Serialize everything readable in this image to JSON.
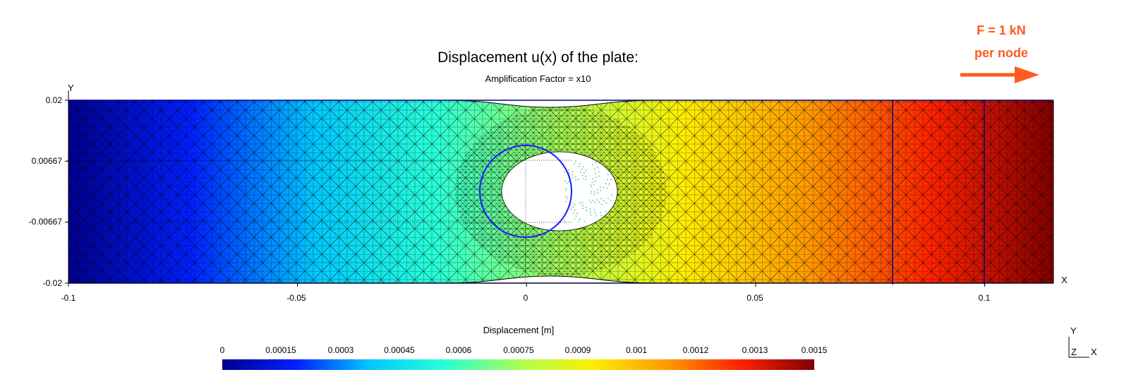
{
  "title": "Displacement u(x) of the plate:",
  "subtitle": "Amplification Factor = x10",
  "load": {
    "line1": "F = 1 kN",
    "line2": "per node",
    "color": "#ff5a1f"
  },
  "axes": {
    "x_name": "X",
    "y_name": "Y",
    "x_ticks": [
      "-0.1",
      "-0.05",
      "0",
      "0.05",
      "0.1"
    ],
    "y_ticks": [
      "0.02",
      "0.00667",
      "-0.00667",
      "-0.02"
    ],
    "xlim": [
      -0.1,
      0.115
    ],
    "ylim": [
      -0.02,
      0.02
    ]
  },
  "colorbar": {
    "title": "Displacement [m]",
    "ticks": [
      "0",
      "0.00015",
      "0.0003",
      "0.00045",
      "0.0006",
      "0.00075",
      "0.0009",
      "0.001",
      "0.0012",
      "0.0013",
      "0.0015"
    ],
    "range": [
      0,
      0.0015
    ],
    "colormap": [
      "#00008f",
      "#0020ff",
      "#00c8ff",
      "#2affd5",
      "#a9ff56",
      "#ffee00",
      "#ff9a00",
      "#ff2200",
      "#800000"
    ]
  },
  "triad": {
    "y": "Y",
    "z": "Z",
    "x": "X"
  },
  "colors": {
    "outline": "#000080",
    "undeformed_hole": "#1a1aff",
    "mesh": "#000000"
  }
}
